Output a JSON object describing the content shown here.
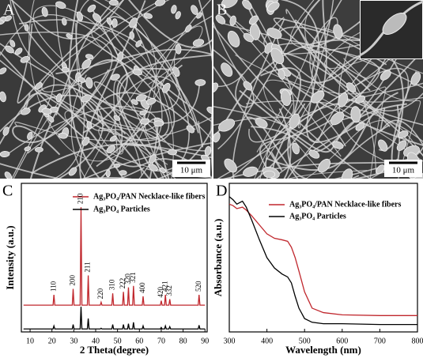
{
  "panels": [
    {
      "label": "A",
      "scale_bar": "10 μm"
    },
    {
      "label": "B",
      "scale_bar": "10 μm"
    }
  ],
  "chart_data": [
    {
      "type": "line",
      "label": "C",
      "xlabel": "2 Theta(degree)",
      "ylabel": "Intensity (a.u.)",
      "xlim": [
        6,
        91
      ],
      "xticks": [
        10,
        20,
        30,
        40,
        50,
        60,
        70,
        80,
        90
      ],
      "ylim": [
        0,
        100
      ],
      "x": [
        7,
        20.5,
        20.9,
        21.3,
        29.3,
        29.7,
        30.1,
        32.9,
        33.3,
        33.7,
        36.2,
        36.6,
        37.0,
        42.1,
        42.5,
        42.9,
        47.4,
        47.8,
        48.2,
        52.3,
        52.7,
        53.1,
        54.6,
        55.0,
        55.4,
        56.9,
        57.3,
        57.7,
        61.3,
        61.7,
        62.1,
        69.6,
        70.0,
        70.4,
        71.5,
        71.9,
        72.3,
        73.5,
        73.9,
        74.3,
        86.9,
        87.3,
        87.7,
        90
      ],
      "series": [
        {
          "name": "Ag₃PO₄/PAN Necklace-like fibers",
          "color": "#c0272d",
          "values": [
            18,
            18,
            25,
            18,
            18,
            29,
            18,
            18,
            84,
            18,
            18,
            38,
            18,
            18,
            20,
            18,
            18,
            26,
            18,
            18,
            27,
            18,
            18,
            30,
            18,
            18,
            31,
            18,
            18,
            24,
            18,
            18,
            21,
            18,
            18,
            25,
            18,
            18,
            22,
            18,
            18,
            25,
            18,
            18
          ]
        },
        {
          "name": "Ag₃PO₄ Particles",
          "color": "#000000",
          "values": [
            2,
            2,
            4,
            2,
            2,
            5,
            2,
            2,
            17,
            2,
            2,
            9,
            2,
            2,
            2.5,
            2,
            2,
            5,
            2,
            2,
            5,
            2,
            2,
            5.5,
            2,
            2,
            6.5,
            2,
            2,
            4,
            2,
            2,
            3,
            2,
            2,
            4,
            2,
            2,
            3.5,
            2,
            2,
            4.5,
            2,
            2
          ]
        }
      ],
      "annotations": [
        {
          "label": "110",
          "x": 20.9
        },
        {
          "label": "200",
          "x": 29.7
        },
        {
          "label": "210",
          "x": 33.3
        },
        {
          "label": "211",
          "x": 36.6
        },
        {
          "label": "220",
          "x": 42.5
        },
        {
          "label": "310",
          "x": 47.8
        },
        {
          "label": "222",
          "x": 52.7
        },
        {
          "label": "320",
          "x": 55.0
        },
        {
          "label": "321",
          "x": 57.3
        },
        {
          "label": "400",
          "x": 61.7
        },
        {
          "label": "420",
          "x": 70.0
        },
        {
          "label": "421",
          "x": 71.9
        },
        {
          "label": "332",
          "x": 73.9
        },
        {
          "label": "520",
          "x": 87.3
        }
      ]
    },
    {
      "type": "line",
      "label": "D",
      "xlabel": "Wavelength (nm)",
      "ylabel": "Absorbance (a.u.)",
      "xlim": [
        300,
        800
      ],
      "xticks": [
        300,
        400,
        500,
        600,
        700,
        800
      ],
      "ylim": [
        0,
        100
      ],
      "x": [
        300,
        310,
        320,
        335,
        345,
        360,
        380,
        400,
        420,
        440,
        455,
        465,
        475,
        485,
        500,
        520,
        550,
        600,
        700,
        800
      ],
      "series": [
        {
          "name": "Ag₃PO₄/PAN Necklace-like fibers",
          "color": "#c0272d",
          "values": [
            86,
            85,
            83,
            84,
            82,
            78,
            72,
            66,
            63,
            62,
            61,
            57,
            50,
            41,
            27,
            16,
            13,
            11.5,
            11,
            11
          ]
        },
        {
          "name": "Ag₃PO₄ Particles",
          "color": "#000000",
          "values": [
            91,
            89,
            86,
            88,
            84,
            75,
            62,
            50,
            43,
            39,
            37,
            33,
            24,
            16,
            9,
            6.5,
            5.5,
            5.5,
            5,
            5
          ]
        }
      ]
    }
  ]
}
